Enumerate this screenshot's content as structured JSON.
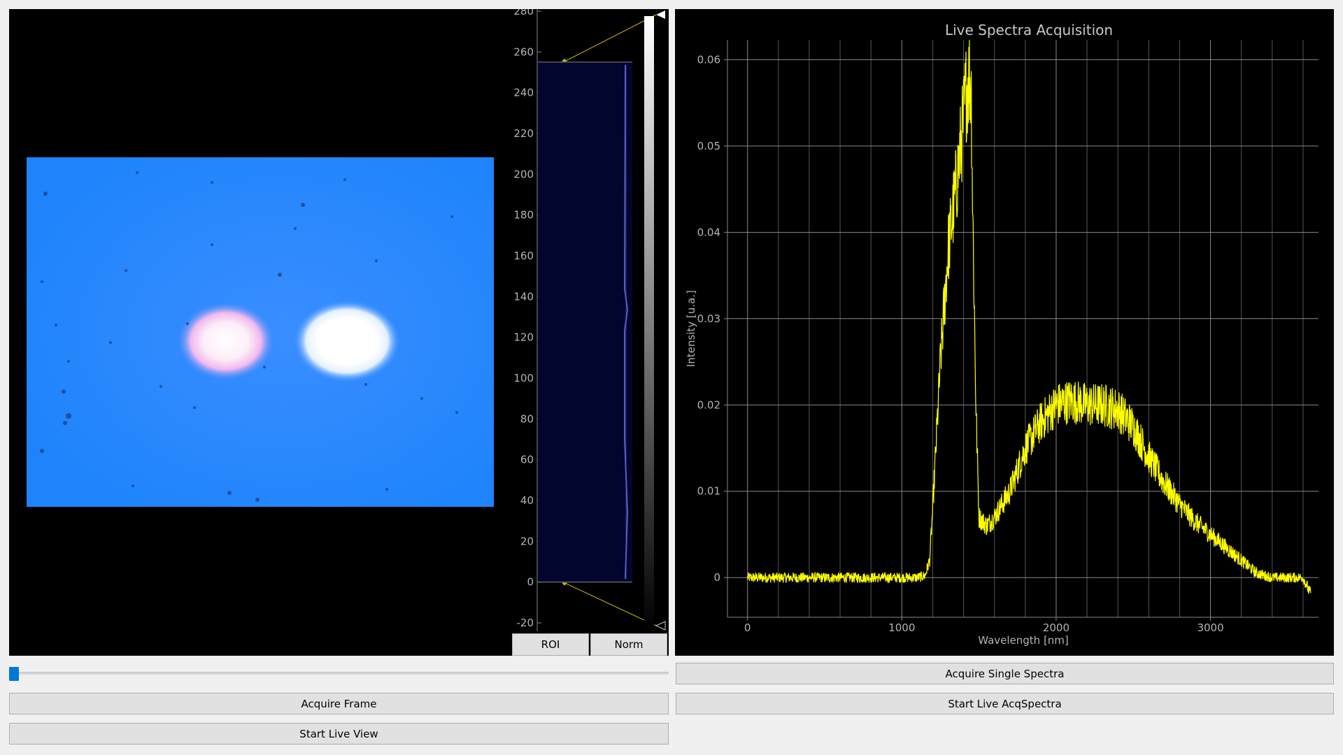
{
  "image_view": {
    "name": "camera-frame"
  },
  "histogram": {
    "ticks": [
      "280",
      "260",
      "240",
      "220",
      "200",
      "180",
      "160",
      "140",
      "120",
      "100",
      "80",
      "60",
      "40",
      "20",
      "0",
      "-20"
    ],
    "tick_values": [
      280,
      260,
      240,
      220,
      200,
      180,
      160,
      140,
      120,
      100,
      80,
      60,
      40,
      20,
      0,
      -20
    ],
    "levels": {
      "min": 0,
      "max": 255
    },
    "roi_label": "ROI",
    "norm_label": "Norm"
  },
  "frame_slider": {
    "value_fraction": 0.0
  },
  "buttons": {
    "acquire_frame": "Acquire Frame",
    "start_live_view": "Start Live View",
    "acquire_single_spectra": "Acquire Single Spectra",
    "start_live_acq_spectra": "Start Live AcqSpectra"
  },
  "chart_data": {
    "type": "line",
    "title": "Live Spectra Acquisition",
    "xlabel": "Wavelength [nm]",
    "ylabel": "Intensity [u.a.]",
    "xlim": [
      -130,
      3700
    ],
    "ylim": [
      -0.0046,
      0.0623
    ],
    "xticks": [
      0,
      1000,
      2000,
      3000
    ],
    "xtick_labels": [
      "0",
      "1000",
      "2000",
      "3000"
    ],
    "yticks": [
      0,
      0.01,
      0.02,
      0.03,
      0.04,
      0.05,
      0.06
    ],
    "ytick_labels": [
      "0",
      "0.01",
      "0.02",
      "0.03",
      "0.04",
      "0.05",
      "0.06"
    ],
    "grid": true,
    "line_color": "#ffff00",
    "series": [
      {
        "x": [
          0,
          200,
          400,
          600,
          800,
          1000,
          1100,
          1150,
          1180,
          1200,
          1250,
          1300,
          1350,
          1400,
          1420,
          1440,
          1450,
          1460,
          1480,
          1500,
          1550,
          1600,
          1700,
          1800,
          1900,
          2000,
          2100,
          2200,
          2300,
          2400,
          2500,
          2600,
          2700,
          2800,
          2900,
          3000,
          3100,
          3200,
          3300,
          3400,
          3500,
          3600,
          3650
        ],
        "y": [
          0.0,
          0.0,
          0.0,
          0.0,
          0.0,
          0.0,
          0.0,
          0.0002,
          0.002,
          0.008,
          0.025,
          0.038,
          0.045,
          0.053,
          0.057,
          0.058,
          0.056,
          0.042,
          0.02,
          0.007,
          0.006,
          0.007,
          0.01,
          0.015,
          0.018,
          0.02,
          0.0205,
          0.02,
          0.02,
          0.0195,
          0.0175,
          0.014,
          0.011,
          0.0085,
          0.0065,
          0.005,
          0.0035,
          0.002,
          0.0005,
          0.0,
          0.0,
          0.0,
          -0.002
        ]
      }
    ]
  }
}
